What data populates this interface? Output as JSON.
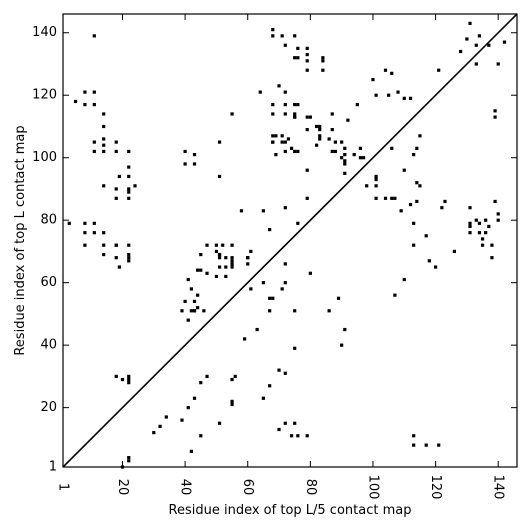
{
  "chart_data": {
    "type": "scatter",
    "xlabel": "Residue index of top L/5 contact map",
    "ylabel": "Residue index of top L contact map",
    "xlim": [
      1,
      146
    ],
    "ylim": [
      1,
      146
    ],
    "x_ticks": [
      1,
      20,
      40,
      60,
      80,
      100,
      120,
      140
    ],
    "y_ticks": [
      1,
      20,
      40,
      60,
      80,
      100,
      120,
      140
    ],
    "diagonal_line": true,
    "marker_color": "#000000",
    "lower_series": {
      "name": "",
      "x": [
        20,
        22,
        22,
        42,
        45,
        51,
        55,
        55,
        65,
        67,
        70,
        72,
        75,
        90,
        91,
        86,
        89,
        107,
        110,
        120,
        118,
        126,
        135,
        135,
        136,
        137,
        136,
        140,
        114,
        115,
        101,
        91,
        110,
        113,
        114,
        115,
        69,
        71,
        73,
        68,
        74,
        75,
        76,
        96,
        97,
        114,
        123,
        122,
        79,
        98,
        107,
        112,
        96,
        106,
        131,
        139,
        140,
        133,
        131,
        52,
        53,
        53,
        53,
        42,
        41,
        44,
        39,
        40,
        42,
        41,
        44,
        45,
        61,
        45,
        51,
        55,
        60,
        61,
        67,
        76,
        65,
        58,
        72,
        30,
        32,
        34,
        39,
        41,
        43,
        45,
        47,
        55,
        56,
        71,
        59,
        63,
        80,
        82,
        82,
        87,
        92,
        95,
        104,
        106,
        108,
        110,
        112,
        137,
        140,
        142,
        128,
        133,
        139,
        139,
        100,
        101,
        105,
        70,
        130,
        133,
        134,
        131
      ],
      "y": [
        1,
        3,
        4,
        6,
        11,
        15,
        21,
        22,
        23,
        27,
        32,
        31,
        39,
        40,
        45,
        51,
        55,
        56,
        61,
        65,
        67,
        70,
        72,
        74,
        76,
        78,
        80,
        82,
        86,
        91,
        93,
        95,
        96,
        101,
        103,
        107,
        107,
        107,
        106,
        107,
        103,
        102,
        102,
        100,
        100,
        92,
        86,
        84,
        96,
        91,
        87,
        85,
        103,
        103,
        84,
        86,
        80,
        80,
        78,
        72,
        68,
        65,
        62,
        51,
        48,
        56,
        51,
        54,
        58,
        61,
        64,
        64,
        58,
        69,
        69,
        66,
        66,
        70,
        77,
        79,
        83,
        83,
        84,
        12,
        14,
        17,
        16,
        20,
        23,
        28,
        30,
        29,
        30,
        58,
        42,
        45,
        113,
        110,
        104,
        114,
        112,
        117,
        128,
        127,
        121,
        119,
        119,
        136,
        130,
        137,
        134,
        130,
        115,
        113,
        125,
        120,
        120,
        123,
        138,
        136,
        139,
        143
      ]
    },
    "upper_series": {
      "name": "",
      "x": [
        11,
        5,
        8,
        8,
        11,
        11,
        14,
        14,
        14,
        11,
        11,
        14,
        14,
        18,
        18,
        19,
        18,
        22,
        22,
        22,
        22,
        22,
        24,
        14,
        22,
        18,
        40,
        40,
        43,
        43,
        51,
        51,
        55,
        64,
        72,
        68,
        68,
        68,
        71,
        72,
        69,
        72,
        68,
        72,
        68,
        68,
        71,
        75,
        76,
        72,
        79,
        75,
        76,
        79,
        79,
        79,
        79,
        75,
        75,
        76,
        84,
        84,
        84,
        83,
        87,
        83,
        79,
        75,
        75,
        72,
        88,
        90,
        91,
        91,
        94,
        91,
        83,
        87,
        88,
        91,
        90,
        79,
        83,
        86,
        101,
        101,
        101,
        104,
        106,
        109,
        113,
        113,
        117,
        121,
        131,
        134,
        134,
        131,
        138,
        138,
        3,
        8,
        8,
        8,
        11,
        11,
        14,
        14,
        14,
        18,
        18,
        19,
        18,
        22,
        22,
        22,
        22,
        47,
        50,
        51,
        51,
        51,
        50,
        55,
        55,
        60,
        65,
        68,
        72,
        74,
        76,
        75,
        79,
        80,
        43,
        43,
        44,
        46,
        18,
        20,
        22,
        22,
        22,
        43,
        47,
        55,
        55,
        60,
        67,
        67,
        72,
        72,
        75,
        113,
        113,
        117,
        121,
        50,
        70
      ],
      "y": [
        139,
        118,
        121,
        117,
        121,
        117,
        114,
        110,
        106,
        102,
        105,
        102,
        104,
        102,
        105,
        94,
        87,
        102,
        97,
        94,
        90,
        87,
        91,
        91,
        89,
        90,
        102,
        98,
        101,
        98,
        105,
        94,
        114,
        121,
        121,
        114,
        117,
        105,
        105,
        102,
        101,
        105,
        105,
        114,
        139,
        141,
        139,
        139,
        135,
        136,
        133,
        132,
        132,
        128,
        131,
        135,
        113,
        117,
        113,
        117,
        131,
        128,
        132,
        109,
        109,
        110,
        109,
        113,
        114,
        117,
        105,
        105,
        103,
        101,
        101,
        99,
        106,
        102,
        102,
        98,
        100,
        87,
        107,
        106,
        94,
        91,
        87,
        87,
        87,
        83,
        79,
        72,
        75,
        128,
        79,
        79,
        76,
        76,
        72,
        68,
        79,
        79,
        76,
        72,
        79,
        76,
        72,
        76,
        69,
        72,
        68,
        65,
        72,
        72,
        68,
        67,
        69,
        72,
        72,
        69,
        65,
        68,
        70,
        65,
        68,
        68,
        60,
        55,
        15,
        11,
        11,
        15,
        11,
        63,
        51,
        54,
        52,
        51,
        30,
        29,
        28,
        30,
        29,
        51,
        63,
        67,
        72,
        68,
        51,
        55,
        66,
        60,
        51,
        11,
        8,
        8,
        8,
        62,
        13
      ]
    }
  }
}
